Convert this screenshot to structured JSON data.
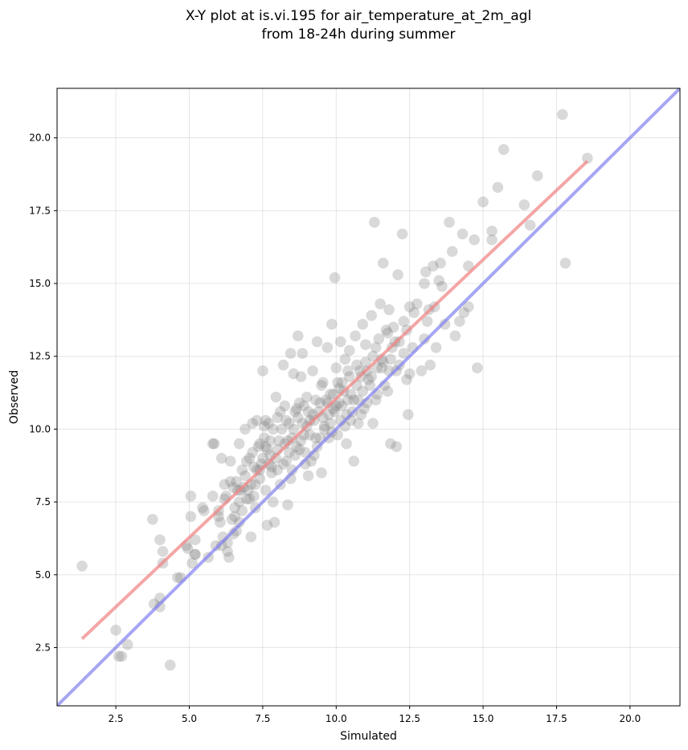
{
  "chart_data": {
    "type": "scatter",
    "title": "X-Y plot at is.vi.195 for air_temperature_at_2m_agl",
    "subtitle": "from 18-24h during summer",
    "xlabel": "Simulated",
    "ylabel": "Observed",
    "xlim": [
      0.5,
      21.7
    ],
    "ylim": [
      0.5,
      21.7
    ],
    "xticks": [
      "2.5",
      "5.0",
      "7.5",
      "10.0",
      "12.5",
      "15.0",
      "17.5",
      "20.0"
    ],
    "yticks": [
      "2.5",
      "5.0",
      "7.5",
      "10.0",
      "12.5",
      "15.0",
      "17.5",
      "20.0"
    ],
    "grid": true,
    "colors": {
      "points": "#808080",
      "regression_line": "#f08080",
      "identity_line": "#8080f0"
    },
    "regression_line": {
      "x": [
        1.35,
        18.55
      ],
      "y": [
        2.8,
        19.2
      ]
    },
    "identity_line": {
      "x": [
        0.5,
        21.7
      ],
      "y": [
        0.5,
        21.7
      ]
    },
    "points": [
      [
        1.35,
        5.3
      ],
      [
        2.5,
        3.1
      ],
      [
        2.6,
        2.2
      ],
      [
        2.7,
        2.2
      ],
      [
        2.9,
        2.6
      ],
      [
        3.75,
        6.9
      ],
      [
        3.8,
        4.0
      ],
      [
        4.0,
        6.2
      ],
      [
        4.0,
        4.2
      ],
      [
        4.0,
        3.9
      ],
      [
        4.1,
        5.8
      ],
      [
        4.1,
        5.4
      ],
      [
        4.35,
        1.9
      ],
      [
        4.6,
        4.9
      ],
      [
        4.7,
        4.9
      ],
      [
        4.9,
        6.0
      ],
      [
        4.95,
        5.9
      ],
      [
        5.05,
        7.7
      ],
      [
        5.05,
        7.0
      ],
      [
        5.1,
        5.4
      ],
      [
        5.2,
        6.2
      ],
      [
        5.2,
        5.7
      ],
      [
        5.45,
        7.3
      ],
      [
        5.5,
        7.2
      ],
      [
        5.65,
        5.6
      ],
      [
        5.8,
        9.5
      ],
      [
        5.85,
        9.5
      ],
      [
        5.8,
        7.7
      ],
      [
        6.0,
        7.2
      ],
      [
        6.05,
        6.8
      ],
      [
        6.1,
        6.0
      ],
      [
        6.1,
        9.0
      ],
      [
        6.2,
        8.1
      ],
      [
        6.2,
        7.6
      ],
      [
        6.3,
        6.1
      ],
      [
        6.3,
        5.8
      ],
      [
        6.35,
        5.6
      ],
      [
        6.4,
        8.9
      ],
      [
        6.45,
        6.9
      ],
      [
        6.5,
        6.4
      ],
      [
        6.55,
        7.3
      ],
      [
        6.6,
        8.2
      ],
      [
        6.6,
        6.5
      ],
      [
        6.7,
        9.5
      ],
      [
        6.7,
        7.5
      ],
      [
        6.75,
        7.9
      ],
      [
        6.8,
        8.6
      ],
      [
        6.8,
        7.2
      ],
      [
        6.9,
        10.0
      ],
      [
        7.0,
        7.9
      ],
      [
        7.05,
        9.0
      ],
      [
        7.1,
        8.1
      ],
      [
        7.1,
        6.3
      ],
      [
        7.15,
        10.2
      ],
      [
        7.2,
        8.7
      ],
      [
        7.25,
        7.3
      ],
      [
        7.3,
        10.3
      ],
      [
        7.35,
        9.4
      ],
      [
        7.4,
        8.6
      ],
      [
        7.5,
        12.0
      ],
      [
        7.55,
        9.7
      ],
      [
        7.6,
        10.3
      ],
      [
        7.6,
        7.9
      ],
      [
        7.65,
        6.7
      ],
      [
        7.7,
        10.2
      ],
      [
        7.75,
        9.1
      ],
      [
        7.8,
        8.7
      ],
      [
        7.85,
        7.5
      ],
      [
        7.9,
        6.8
      ],
      [
        7.95,
        11.1
      ],
      [
        8.0,
        10.4
      ],
      [
        8.0,
        9.3
      ],
      [
        8.1,
        8.1
      ],
      [
        8.15,
        10.0
      ],
      [
        8.2,
        12.2
      ],
      [
        8.25,
        9.5
      ],
      [
        8.3,
        8.9
      ],
      [
        8.35,
        7.4
      ],
      [
        8.4,
        10.2
      ],
      [
        8.45,
        12.6
      ],
      [
        8.5,
        9.7
      ],
      [
        8.5,
        8.6
      ],
      [
        8.55,
        11.9
      ],
      [
        8.6,
        10.6
      ],
      [
        8.65,
        9.4
      ],
      [
        8.7,
        13.2
      ],
      [
        8.75,
        10.9
      ],
      [
        8.8,
        11.8
      ],
      [
        8.85,
        12.6
      ],
      [
        8.9,
        9.8
      ],
      [
        8.95,
        8.8
      ],
      [
        9.0,
        11.1
      ],
      [
        9.05,
        8.4
      ],
      [
        9.1,
        10.3
      ],
      [
        9.2,
        12.0
      ],
      [
        9.25,
        9.1
      ],
      [
        9.3,
        11.0
      ],
      [
        9.35,
        13.0
      ],
      [
        9.4,
        10.6
      ],
      [
        9.5,
        8.5
      ],
      [
        9.55,
        11.6
      ],
      [
        9.6,
        10.1
      ],
      [
        9.7,
        12.8
      ],
      [
        9.75,
        9.7
      ],
      [
        9.8,
        11.2
      ],
      [
        9.85,
        13.6
      ],
      [
        9.9,
        10.7
      ],
      [
        9.95,
        15.2
      ],
      [
        10.0,
        12.1
      ],
      [
        10.05,
        9.8
      ],
      [
        10.1,
        11.4
      ],
      [
        10.15,
        13.0
      ],
      [
        10.2,
        10.8
      ],
      [
        10.3,
        12.4
      ],
      [
        10.35,
        9.5
      ],
      [
        10.4,
        11.0
      ],
      [
        10.45,
        12.7
      ],
      [
        10.5,
        10.3
      ],
      [
        10.6,
        8.9
      ],
      [
        10.65,
        13.2
      ],
      [
        10.7,
        11.5
      ],
      [
        10.8,
        12.0
      ],
      [
        10.85,
        10.5
      ],
      [
        10.9,
        13.6
      ],
      [
        11.0,
        12.3
      ],
      [
        11.05,
        10.9
      ],
      [
        11.1,
        11.7
      ],
      [
        11.2,
        13.9
      ],
      [
        11.25,
        10.2
      ],
      [
        11.3,
        17.1
      ],
      [
        11.35,
        12.8
      ],
      [
        11.4,
        11.2
      ],
      [
        11.5,
        14.3
      ],
      [
        11.55,
        12.1
      ],
      [
        11.6,
        15.7
      ],
      [
        11.7,
        13.4
      ],
      [
        11.75,
        11.3
      ],
      [
        11.8,
        14.1
      ],
      [
        11.85,
        9.5
      ],
      [
        11.9,
        12.8
      ],
      [
        12.0,
        13.0
      ],
      [
        12.05,
        9.4
      ],
      [
        12.1,
        15.3
      ],
      [
        12.15,
        12.2
      ],
      [
        12.25,
        16.7
      ],
      [
        12.3,
        13.7
      ],
      [
        12.4,
        11.7
      ],
      [
        12.45,
        10.5
      ],
      [
        12.5,
        14.2
      ],
      [
        12.6,
        12.8
      ],
      [
        12.75,
        14.3
      ],
      [
        12.9,
        12.0
      ],
      [
        13.0,
        15.0
      ],
      [
        13.05,
        15.4
      ],
      [
        13.1,
        13.7
      ],
      [
        13.2,
        12.2
      ],
      [
        13.3,
        15.6
      ],
      [
        13.4,
        12.8
      ],
      [
        13.5,
        15.1
      ],
      [
        13.55,
        15.7
      ],
      [
        13.7,
        13.6
      ],
      [
        13.85,
        17.1
      ],
      [
        13.95,
        16.1
      ],
      [
        14.05,
        13.2
      ],
      [
        14.2,
        13.7
      ],
      [
        14.3,
        16.7
      ],
      [
        14.35,
        14.0
      ],
      [
        14.5,
        15.6
      ],
      [
        14.5,
        14.2
      ],
      [
        14.7,
        16.5
      ],
      [
        14.8,
        12.1
      ],
      [
        15.0,
        17.8
      ],
      [
        15.3,
        16.5
      ],
      [
        15.3,
        16.8
      ],
      [
        15.5,
        18.3
      ],
      [
        15.7,
        19.6
      ],
      [
        16.4,
        17.7
      ],
      [
        16.6,
        17.0
      ],
      [
        16.85,
        18.7
      ],
      [
        17.7,
        20.8
      ],
      [
        17.8,
        15.7
      ],
      [
        18.55,
        19.3
      ],
      [
        5.2,
        5.7
      ],
      [
        6.85,
        8.0
      ],
      [
        7.05,
        7.6
      ],
      [
        7.3,
        8.6
      ],
      [
        7.45,
        8.8
      ],
      [
        7.65,
        9.3
      ],
      [
        7.8,
        8.5
      ],
      [
        7.95,
        9.0
      ],
      [
        8.05,
        9.6
      ],
      [
        8.2,
        8.8
      ],
      [
        8.3,
        10.3
      ],
      [
        8.35,
        9.6
      ],
      [
        8.45,
        8.3
      ],
      [
        8.55,
        10.0
      ],
      [
        8.6,
        9.1
      ],
      [
        8.7,
        10.4
      ],
      [
        8.8,
        9.6
      ],
      [
        8.85,
        10.2
      ],
      [
        8.95,
        9.2
      ],
      [
        9.05,
        10.6
      ],
      [
        9.1,
        9.8
      ],
      [
        9.15,
        8.9
      ],
      [
        9.25,
        10.3
      ],
      [
        9.35,
        9.4
      ],
      [
        9.45,
        10.9
      ],
      [
        9.5,
        11.5
      ],
      [
        9.6,
        10.0
      ],
      [
        9.65,
        11.0
      ],
      [
        9.75,
        10.5
      ],
      [
        9.85,
        9.9
      ],
      [
        9.9,
        11.2
      ],
      [
        10.0,
        10.8
      ],
      [
        10.05,
        11.6
      ],
      [
        10.15,
        10.3
      ],
      [
        10.25,
        11.3
      ],
      [
        10.3,
        10.1
      ],
      [
        10.4,
        12.0
      ],
      [
        10.5,
        11.2
      ],
      [
        10.55,
        10.6
      ],
      [
        10.7,
        12.2
      ],
      [
        10.75,
        11.0
      ],
      [
        10.85,
        11.8
      ],
      [
        10.95,
        10.7
      ],
      [
        11.0,
        12.9
      ],
      [
        11.15,
        11.5
      ],
      [
        11.25,
        12.5
      ],
      [
        11.35,
        11.0
      ],
      [
        11.45,
        13.1
      ],
      [
        11.55,
        12.4
      ],
      [
        11.65,
        11.5
      ],
      [
        11.75,
        13.3
      ],
      [
        11.85,
        12.4
      ],
      [
        11.95,
        13.5
      ],
      [
        12.05,
        12.0
      ],
      [
        12.15,
        13.0
      ],
      [
        12.3,
        12.6
      ],
      [
        12.4,
        13.4
      ],
      [
        12.5,
        11.9
      ],
      [
        12.65,
        14.0
      ],
      [
        13.0,
        13.1
      ],
      [
        13.15,
        14.1
      ],
      [
        13.35,
        14.2
      ],
      [
        13.6,
        14.9
      ],
      [
        7.4,
        9.5
      ],
      [
        7.55,
        10.1
      ],
      [
        7.7,
        8.8
      ],
      [
        7.85,
        10.0
      ],
      [
        8.1,
        10.6
      ],
      [
        8.25,
        10.8
      ],
      [
        8.4,
        9.2
      ],
      [
        8.65,
        10.7
      ],
      [
        8.75,
        9.3
      ],
      [
        8.9,
        10.8
      ],
      [
        9.0,
        10.1
      ],
      [
        9.2,
        10.5
      ],
      [
        9.3,
        9.7
      ],
      [
        9.45,
        9.7
      ],
      [
        9.55,
        10.4
      ],
      [
        9.7,
        10.9
      ],
      [
        9.8,
        10.2
      ],
      [
        9.95,
        10.6
      ],
      [
        10.1,
        10.9
      ],
      [
        10.2,
        11.6
      ],
      [
        10.35,
        10.5
      ],
      [
        10.45,
        11.8
      ],
      [
        10.6,
        11.0
      ],
      [
        10.75,
        10.2
      ],
      [
        10.9,
        11.3
      ],
      [
        11.05,
        12.0
      ],
      [
        11.2,
        11.8
      ],
      [
        11.4,
        12.1
      ],
      [
        11.6,
        12.3
      ],
      [
        11.8,
        12.0
      ],
      [
        6.4,
        8.2
      ],
      [
        6.55,
        7.0
      ],
      [
        6.65,
        7.9
      ],
      [
        6.9,
        8.4
      ],
      [
        6.95,
        7.6
      ],
      [
        7.15,
        9.2
      ],
      [
        7.25,
        8.1
      ],
      [
        7.5,
        9.0
      ],
      [
        7.75,
        9.6
      ],
      [
        8.0,
        8.6
      ],
      [
        5.9,
        6.0
      ],
      [
        6.0,
        7.0
      ],
      [
        6.15,
        6.3
      ],
      [
        6.25,
        7.7
      ],
      [
        6.5,
        8.0
      ],
      [
        6.7,
        6.8
      ],
      [
        6.95,
        8.9
      ],
      [
        7.2,
        7.7
      ],
      [
        7.4,
        8.3
      ],
      [
        7.6,
        9.4
      ]
    ]
  }
}
